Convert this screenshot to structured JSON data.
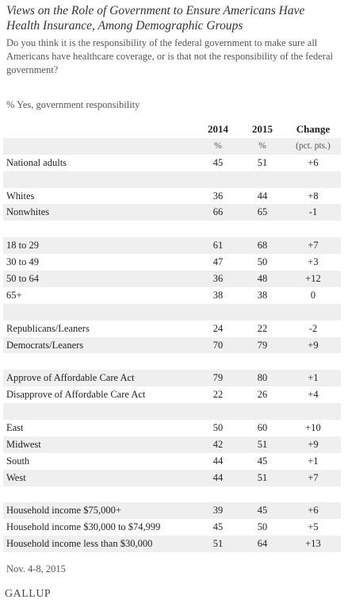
{
  "header": {
    "title": "Views on the Role of Government to Ensure Americans Have Health Insurance, Among Demographic Groups",
    "question": "Do you think it is the responsibility of the federal government to make sure all Americans have healthcare coverage, or is that not the responsibility of the federal government?",
    "unit": "% Yes, government responsibility"
  },
  "table": {
    "columns": [
      "2014",
      "2015",
      "Change"
    ],
    "subheaders": [
      "%",
      "%",
      "(pct. pts.)"
    ],
    "groups": [
      [
        [
          "National adults",
          45,
          51,
          "+6"
        ]
      ],
      [
        [
          "Whites",
          36,
          44,
          "+8"
        ],
        [
          "Nonwhites",
          66,
          65,
          "-1"
        ]
      ],
      [
        [
          "18 to 29",
          61,
          68,
          "+7"
        ],
        [
          "30 to 49",
          47,
          50,
          "+3"
        ],
        [
          "50 to 64",
          36,
          48,
          "+12"
        ],
        [
          "65+",
          38,
          38,
          "0"
        ]
      ],
      [
        [
          "Republicans/Leaners",
          24,
          22,
          "-2"
        ],
        [
          "Democrats/Leaners",
          70,
          79,
          "+9"
        ]
      ],
      [
        [
          "Approve of Affordable Care Act",
          79,
          80,
          "+1"
        ],
        [
          "Disapprove of Affordable Care Act",
          22,
          26,
          "+4"
        ]
      ],
      [
        [
          "East",
          50,
          60,
          "+10"
        ],
        [
          "Midwest",
          42,
          51,
          "+9"
        ],
        [
          "South",
          44,
          45,
          "+1"
        ],
        [
          "West",
          44,
          51,
          "+7"
        ]
      ],
      [
        [
          "Household income $75,000+",
          39,
          45,
          "+6"
        ],
        [
          "Household income $30,000 to $74,999",
          45,
          50,
          "+5"
        ],
        [
          "Household income less than $30,000",
          51,
          64,
          "+13"
        ]
      ]
    ]
  },
  "footer": {
    "date": "Nov. 4-8, 2015",
    "source": "GALLUP"
  }
}
